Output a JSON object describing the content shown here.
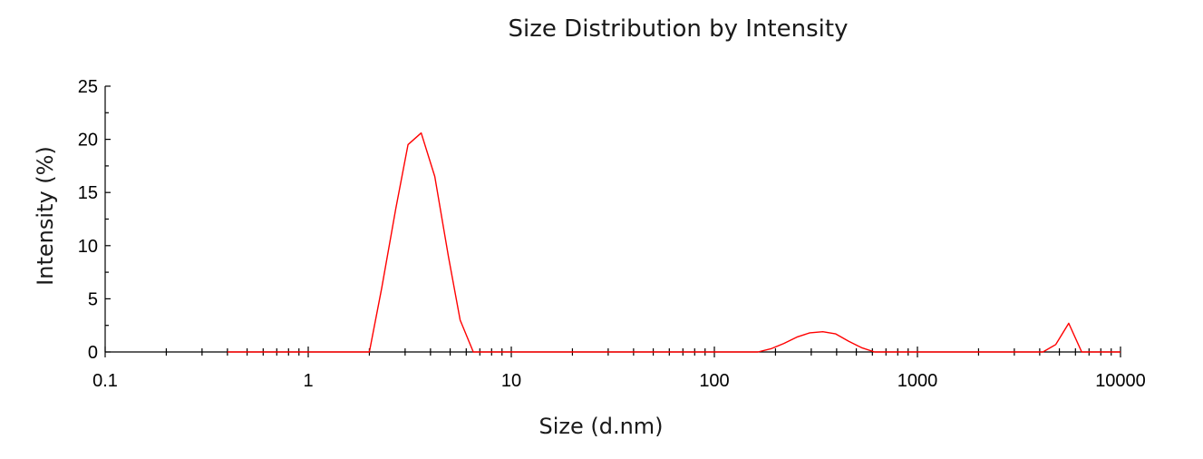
{
  "chart_data": {
    "type": "line",
    "title": "Size Distribution by Intensity",
    "xlabel": "Size (d.nm)",
    "ylabel": "Intensity (%)",
    "xscale": "log",
    "xlim": [
      0.1,
      10000
    ],
    "ylim": [
      0,
      25
    ],
    "x_ticks": [
      0.1,
      1,
      10,
      100,
      1000,
      10000
    ],
    "x_tick_labels": [
      "0.1",
      "1",
      "10",
      "100",
      "1000",
      "10000"
    ],
    "y_ticks": [
      0,
      5,
      10,
      15,
      20,
      25
    ],
    "y_tick_labels": [
      "0",
      "5",
      "10",
      "15",
      "20",
      "25"
    ],
    "grid": false,
    "legend": "none",
    "series": [
      {
        "color": "#ff0000",
        "x": [
          0.4,
          1.0,
          2.0,
          2.3,
          2.7,
          3.1,
          3.6,
          4.2,
          4.9,
          5.6,
          6.5,
          10,
          20,
          50,
          100,
          164,
          190,
          220,
          255,
          295,
          342,
          396,
          459,
          531,
          615,
          1000,
          2000,
          4150,
          4800,
          5560,
          6440,
          10000
        ],
        "y": [
          0,
          0,
          0,
          6.0,
          13.5,
          19.5,
          20.6,
          16.5,
          9.0,
          3.0,
          0,
          0,
          0,
          0,
          0,
          0,
          0.3,
          0.8,
          1.4,
          1.8,
          1.9,
          1.7,
          1.0,
          0.4,
          0,
          0,
          0,
          0,
          0.7,
          2.7,
          0,
          0
        ]
      }
    ]
  }
}
